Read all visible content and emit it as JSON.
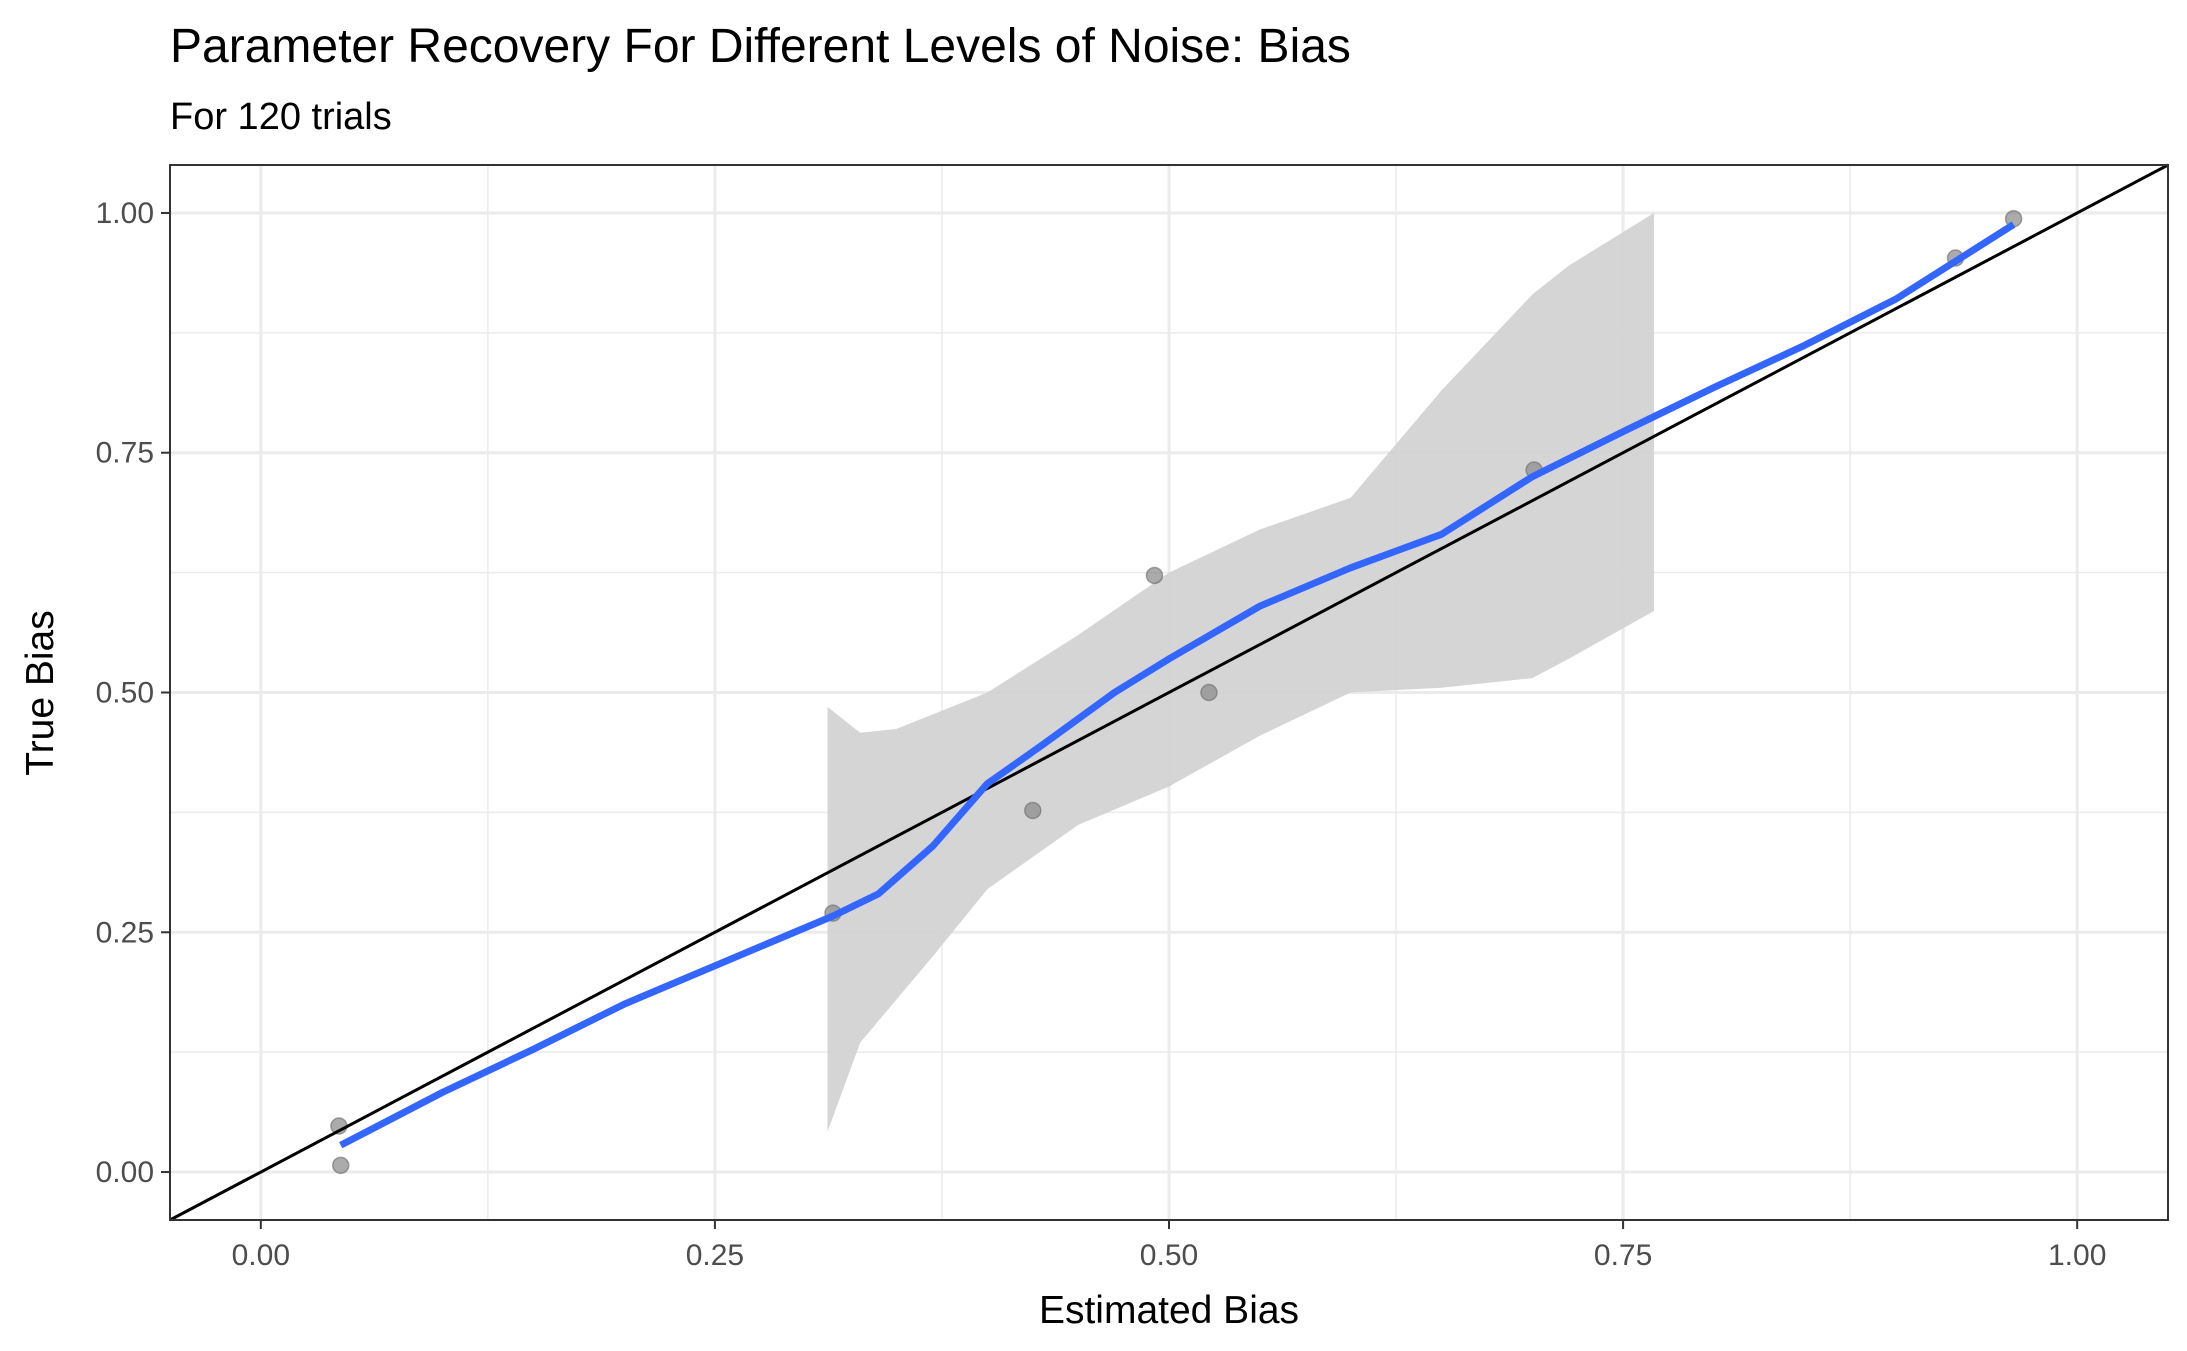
{
  "chart_data": {
    "type": "scatter",
    "title": "Parameter Recovery For Different Levels of Noise: Bias",
    "subtitle": "For 120 trials",
    "xlabel": "Estimated Bias",
    "ylabel": "True Bias",
    "xlim": [
      -0.05,
      1.05
    ],
    "ylim": [
      -0.05,
      1.05
    ],
    "x_ticks": [
      0,
      0.25,
      0.5,
      0.75,
      1
    ],
    "x_tick_labels": [
      "0.00",
      "0.25",
      "0.50",
      "0.75",
      "1.00"
    ],
    "y_ticks": [
      0,
      0.25,
      0.5,
      0.75,
      1
    ],
    "y_tick_labels": [
      "0.00",
      "0.25",
      "0.50",
      "0.75",
      "1.00"
    ],
    "grid": true,
    "points": [
      {
        "x": 0.043,
        "y": 0.048
      },
      {
        "x": 0.044,
        "y": 0.007
      },
      {
        "x": 0.315,
        "y": 0.27
      },
      {
        "x": 0.425,
        "y": 0.377
      },
      {
        "x": 0.492,
        "y": 0.622
      },
      {
        "x": 0.522,
        "y": 0.5
      },
      {
        "x": 0.701,
        "y": 0.732
      },
      {
        "x": 0.933,
        "y": 0.953
      },
      {
        "x": 0.965,
        "y": 0.994
      }
    ],
    "smooth_line": [
      [
        0.044,
        0.028
      ],
      [
        0.1,
        0.083
      ],
      [
        0.15,
        0.128
      ],
      [
        0.2,
        0.175
      ],
      [
        0.25,
        0.215
      ],
      [
        0.3,
        0.255
      ],
      [
        0.315,
        0.267
      ],
      [
        0.34,
        0.29
      ],
      [
        0.37,
        0.34
      ],
      [
        0.4,
        0.405
      ],
      [
        0.43,
        0.445
      ],
      [
        0.47,
        0.5
      ],
      [
        0.5,
        0.535
      ],
      [
        0.55,
        0.59
      ],
      [
        0.6,
        0.63
      ],
      [
        0.65,
        0.665
      ],
      [
        0.7,
        0.725
      ],
      [
        0.75,
        0.772
      ],
      [
        0.8,
        0.818
      ],
      [
        0.85,
        0.862
      ],
      [
        0.9,
        0.91
      ],
      [
        0.965,
        0.988
      ]
    ],
    "confidence_band_upper": [
      [
        0.312,
        0.485
      ],
      [
        0.33,
        0.458
      ],
      [
        0.35,
        0.462
      ],
      [
        0.4,
        0.5
      ],
      [
        0.45,
        0.56
      ],
      [
        0.5,
        0.625
      ],
      [
        0.55,
        0.67
      ],
      [
        0.6,
        0.703
      ],
      [
        0.65,
        0.815
      ],
      [
        0.7,
        0.915
      ],
      [
        0.72,
        0.945
      ],
      [
        0.767,
        1.0
      ]
    ],
    "confidence_band_lower": [
      [
        0.767,
        0.585
      ],
      [
        0.72,
        0.535
      ],
      [
        0.7,
        0.515
      ],
      [
        0.65,
        0.505
      ],
      [
        0.6,
        0.5
      ],
      [
        0.55,
        0.455
      ],
      [
        0.5,
        0.402
      ],
      [
        0.45,
        0.362
      ],
      [
        0.4,
        0.295
      ],
      [
        0.37,
        0.225
      ],
      [
        0.33,
        0.135
      ],
      [
        0.312,
        0.042
      ]
    ],
    "reference_line": {
      "slope": 1,
      "intercept": 0
    },
    "colors": {
      "smooth_line": "#3366FF",
      "band": "#d3d3d3",
      "points": "#888888",
      "reference_line": "#000000",
      "grid": "#ebebeb",
      "panel_border": "#333333"
    }
  }
}
